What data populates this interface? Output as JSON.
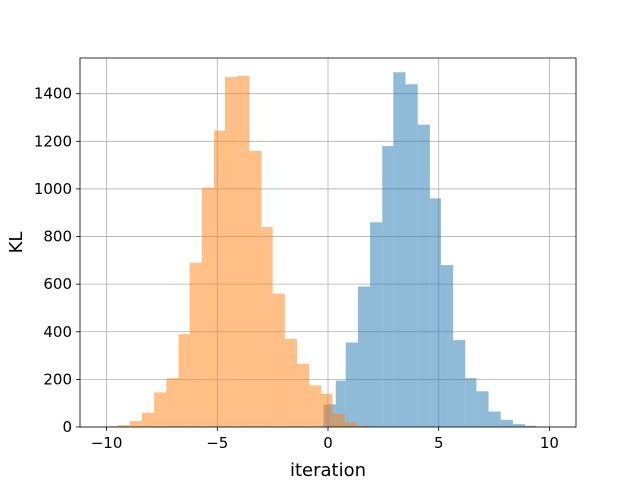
{
  "chart_data": {
    "type": "bar",
    "title": "",
    "xlabel": "iteration",
    "ylabel": "KL",
    "xlim": [
      -11.2,
      11.2
    ],
    "ylim": [
      0,
      1550
    ],
    "grid": true,
    "legend": "none",
    "x_ticks": [
      -10,
      -5,
      0,
      5,
      10
    ],
    "x_tick_labels": [
      "−10",
      "−5",
      "0",
      "5",
      "10"
    ],
    "y_ticks": [
      0,
      200,
      400,
      600,
      800,
      1000,
      1200,
      1400
    ],
    "y_tick_labels": [
      "0",
      "200",
      "400",
      "600",
      "800",
      "1000",
      "1200",
      "1400"
    ],
    "series": [
      {
        "color": "#1f77b4",
        "opacity": 0.5,
        "bins": [
          {
            "x0": -0.2,
            "x1": 0.35,
            "value": 95
          },
          {
            "x0": 0.35,
            "x1": 0.8,
            "value": 195
          },
          {
            "x0": 0.8,
            "x1": 1.35,
            "value": 355
          },
          {
            "x0": 1.35,
            "x1": 1.9,
            "value": 590
          },
          {
            "x0": 1.9,
            "x1": 2.45,
            "value": 860
          },
          {
            "x0": 2.45,
            "x1": 2.95,
            "value": 1180
          },
          {
            "x0": 2.95,
            "x1": 3.5,
            "value": 1490
          },
          {
            "x0": 3.5,
            "x1": 4.05,
            "value": 1440
          },
          {
            "x0": 4.05,
            "x1": 4.6,
            "value": 1270
          },
          {
            "x0": 4.6,
            "x1": 5.1,
            "value": 960
          },
          {
            "x0": 5.1,
            "x1": 5.65,
            "value": 680
          },
          {
            "x0": 5.65,
            "x1": 6.2,
            "value": 365
          },
          {
            "x0": 6.2,
            "x1": 6.7,
            "value": 205
          },
          {
            "x0": 6.7,
            "x1": 7.25,
            "value": 150
          },
          {
            "x0": 7.25,
            "x1": 7.8,
            "value": 65
          },
          {
            "x0": 7.8,
            "x1": 8.35,
            "value": 30
          },
          {
            "x0": 8.35,
            "x1": 8.9,
            "value": 12
          },
          {
            "x0": 8.9,
            "x1": 9.4,
            "value": 5
          }
        ]
      },
      {
        "color": "#ff7f0e",
        "opacity": 0.5,
        "bins": [
          {
            "x0": -10.1,
            "x1": -9.5,
            "value": 3
          },
          {
            "x0": -9.5,
            "x1": -8.95,
            "value": 8
          },
          {
            "x0": -8.95,
            "x1": -8.4,
            "value": 25
          },
          {
            "x0": -8.4,
            "x1": -7.85,
            "value": 60
          },
          {
            "x0": -7.85,
            "x1": -7.3,
            "value": 145
          },
          {
            "x0": -7.3,
            "x1": -6.75,
            "value": 205
          },
          {
            "x0": -6.75,
            "x1": -6.25,
            "value": 390
          },
          {
            "x0": -6.25,
            "x1": -5.7,
            "value": 690
          },
          {
            "x0": -5.7,
            "x1": -5.15,
            "value": 1005
          },
          {
            "x0": -5.15,
            "x1": -4.65,
            "value": 1245
          },
          {
            "x0": -4.65,
            "x1": -4.1,
            "value": 1470
          },
          {
            "x0": -4.1,
            "x1": -3.55,
            "value": 1475
          },
          {
            "x0": -3.55,
            "x1": -3.0,
            "value": 1160
          },
          {
            "x0": -3.0,
            "x1": -2.5,
            "value": 840
          },
          {
            "x0": -2.5,
            "x1": -1.95,
            "value": 560
          },
          {
            "x0": -1.95,
            "x1": -1.4,
            "value": 370
          },
          {
            "x0": -1.4,
            "x1": -0.85,
            "value": 265
          },
          {
            "x0": -0.85,
            "x1": -0.3,
            "value": 175
          },
          {
            "x0": -0.3,
            "x1": 0.2,
            "value": 140
          },
          {
            "x0": 0.2,
            "x1": 0.75,
            "value": 55
          },
          {
            "x0": 0.75,
            "x1": 1.3,
            "value": 20
          },
          {
            "x0": 1.3,
            "x1": 1.85,
            "value": 5
          }
        ]
      }
    ]
  }
}
